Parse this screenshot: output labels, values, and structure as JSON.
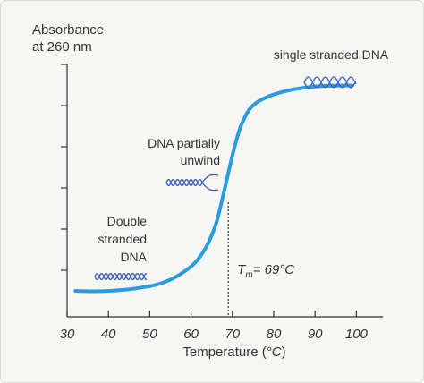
{
  "chart_data": {
    "type": "line",
    "ylabel_line1": "Absorbance",
    "ylabel_line2": "at 260 nm",
    "xlabel": "Temperature",
    "xunit": "°C",
    "xlim": [
      30,
      100
    ],
    "ylim": [
      0,
      1
    ],
    "x_ticks": [
      "30",
      "40",
      "50",
      "60",
      "70",
      "80",
      "90",
      "100"
    ],
    "x_tick_values": [
      30,
      40,
      50,
      60,
      70,
      80,
      90,
      100
    ],
    "y_tick_count": 6,
    "series": [
      {
        "color": "#2b9be0",
        "x": [
          32,
          36,
          40,
          44,
          48,
          52,
          56,
          60,
          62,
          64,
          66,
          67,
          68,
          69,
          70,
          71,
          72,
          74,
          76,
          78,
          80,
          84,
          88,
          92,
          96,
          99
        ],
        "y": [
          0.02,
          0.018,
          0.02,
          0.025,
          0.035,
          0.05,
          0.08,
          0.13,
          0.17,
          0.23,
          0.32,
          0.39,
          0.47,
          0.55,
          0.63,
          0.7,
          0.76,
          0.835,
          0.87,
          0.89,
          0.905,
          0.925,
          0.937,
          0.943,
          0.945,
          0.945
        ]
      }
    ],
    "tm": {
      "value": 69,
      "label_T": "T",
      "label_sub": "m",
      "label_rest": "= 69°C"
    },
    "annotations": {
      "single": "single stranded DNA",
      "partial_line1": "DNA partially",
      "partial_line2": "unwind",
      "double_line1": "Double",
      "double_line2": "stranded",
      "double_line3": "DNA"
    },
    "icon_colors": {
      "strand": "#3a5fc8"
    }
  }
}
